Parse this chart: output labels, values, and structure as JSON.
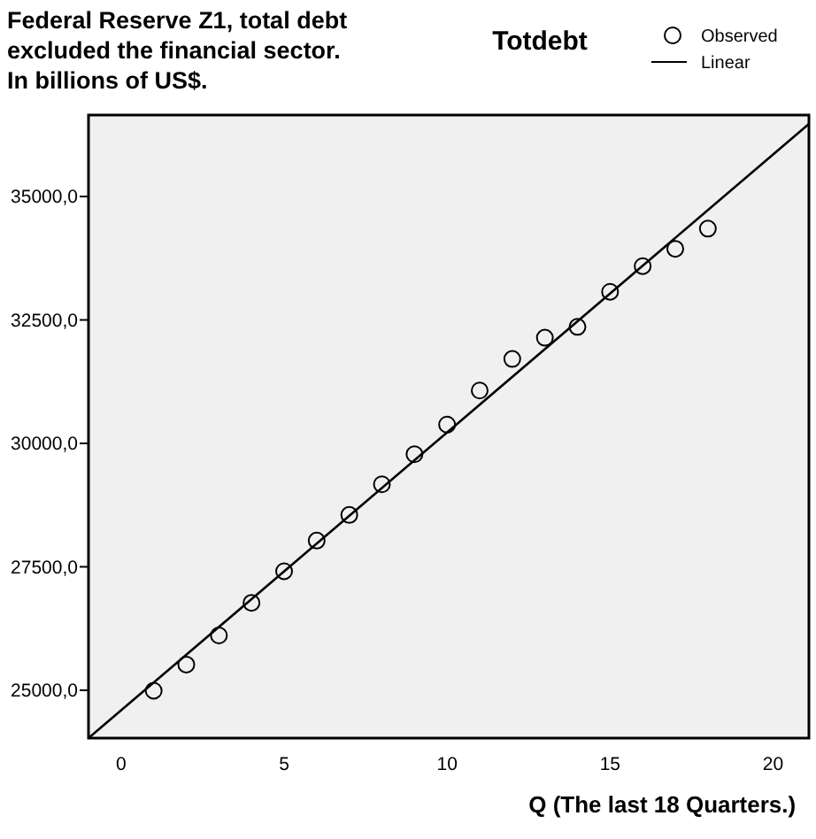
{
  "chart_data": {
    "type": "scatter",
    "title": "Totdebt",
    "xlabel": "Q (The last 18 Quarters.)",
    "annotations": [
      "Federal Reserve Z1, total debt\nexcluded the financial sector.\nIn billions of US$."
    ],
    "xlim": [
      -1,
      21.1
    ],
    "xticks": [
      0,
      5,
      10,
      15,
      20
    ],
    "ylim": [
      24030,
      36650
    ],
    "yticks": [
      {
        "value": 25000,
        "label": "25000,0"
      },
      {
        "value": 27500,
        "label": "27500,0"
      },
      {
        "value": 30000,
        "label": "30000,0"
      },
      {
        "value": 32500,
        "label": "32500,0"
      },
      {
        "value": 35000,
        "label": "35000,0"
      }
    ],
    "grid": false,
    "legend": "top right",
    "series": [
      {
        "name": "Observed",
        "marker": "circle",
        "color": "#000000",
        "x": [
          1,
          2,
          3,
          4,
          5,
          6,
          7,
          8,
          9,
          10,
          11,
          12,
          13,
          14,
          15,
          16,
          17,
          18
        ],
        "values": [
          24990,
          25520,
          26110,
          26770,
          27410,
          28030,
          28550,
          29170,
          29780,
          30380,
          31070,
          31710,
          32140,
          32360,
          33070,
          33590,
          33940,
          34350
        ]
      },
      {
        "name": "Linear",
        "type": "line",
        "color": "#000000",
        "line_style": "solid",
        "x": [
          -1,
          21.1
        ],
        "values": [
          24030,
          36470
        ]
      }
    ]
  }
}
